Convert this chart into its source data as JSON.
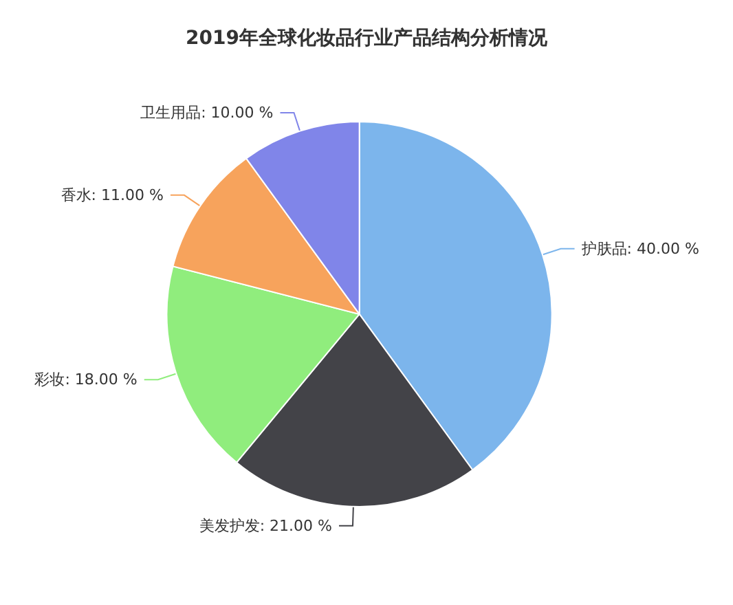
{
  "chart_data": {
    "type": "pie",
    "title": "2019年全球化妆品行业产品结构分析情况",
    "categories": [
      "护肤品",
      "美发护发",
      "彩妆",
      "香水",
      "卫生用品"
    ],
    "values": [
      40,
      21,
      18,
      11,
      10
    ],
    "value_labels": [
      "40.00 %",
      "21.00 %",
      "18.00 %",
      "11.00 %",
      "10.00 %"
    ],
    "colors": [
      "#7cb5ec",
      "#434348",
      "#90ed7d",
      "#f7a35c",
      "#8085e9"
    ],
    "legend": false
  }
}
